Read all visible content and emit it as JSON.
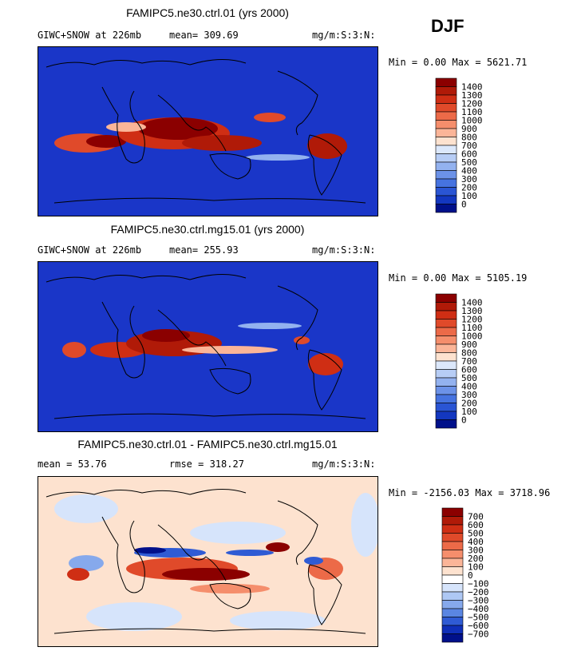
{
  "season": "DJF",
  "panels": [
    {
      "title": "FAMIPC5.ne30.ctrl.01 (yrs 2000)",
      "left_label": "GIWC+SNOW at 226mb",
      "mid_label": "mean= 309.69",
      "units": "mg/m:S:3:N:",
      "minmax": "Min =   0.00 Max = 5621.71",
      "colorbar": {
        "labels": [
          "1400",
          "1300",
          "1200",
          "1100",
          "1000",
          "900",
          "800",
          "700",
          "600",
          "500",
          "400",
          "300",
          "200",
          "100",
          "0"
        ],
        "colors": [
          "#8b0000",
          "#b01a08",
          "#cf2e14",
          "#e04a2a",
          "#ec6a48",
          "#f58e6c",
          "#fbb598",
          "#fde2cf",
          "#dce8fb",
          "#b7cdf5",
          "#93b2ef",
          "#6c92e8",
          "#4673e0",
          "#2a55d4",
          "#1337c0",
          "#00108a"
        ]
      }
    },
    {
      "title": "FAMIPC5.ne30.ctrl.mg15.01 (yrs 2000)",
      "left_label": "GIWC+SNOW at 226mb",
      "mid_label": "mean= 255.93",
      "units": "mg/m:S:3:N:",
      "minmax": "Min =   0.00 Max = 5105.19",
      "colorbar": {
        "labels": [
          "1400",
          "1300",
          "1200",
          "1100",
          "1000",
          "900",
          "800",
          "700",
          "600",
          "500",
          "400",
          "300",
          "200",
          "100",
          "0"
        ],
        "colors": [
          "#8b0000",
          "#b01a08",
          "#cf2e14",
          "#e04a2a",
          "#ec6a48",
          "#f58e6c",
          "#fbb598",
          "#fde2cf",
          "#dce8fb",
          "#b7cdf5",
          "#93b2ef",
          "#6c92e8",
          "#4673e0",
          "#2a55d4",
          "#1337c0",
          "#00108a"
        ]
      }
    },
    {
      "title": "FAMIPC5.ne30.ctrl.01 - FAMIPC5.ne30.ctrl.mg15.01",
      "left_label": "mean =   53.76",
      "mid_label": "rmse = 318.27",
      "units": "mg/m:S:3:N:",
      "minmax": "Min = -2156.03 Max = 3718.96",
      "colorbar": {
        "labels": [
          "700",
          "600",
          "500",
          "400",
          "300",
          "200",
          "100",
          "0",
          "−100",
          "−200",
          "−300",
          "−400",
          "−500",
          "−600",
          "−700"
        ],
        "colors": [
          "#8b0000",
          "#b01a08",
          "#cf2e14",
          "#e04a2a",
          "#ec6a48",
          "#f58e6c",
          "#fbb598",
          "#fde2cf",
          "#ffffff",
          "#d6e4fb",
          "#aec8f4",
          "#86a9ec",
          "#5a86e2",
          "#2f5bd4",
          "#0f2fb8",
          "#00108a"
        ]
      }
    }
  ]
}
